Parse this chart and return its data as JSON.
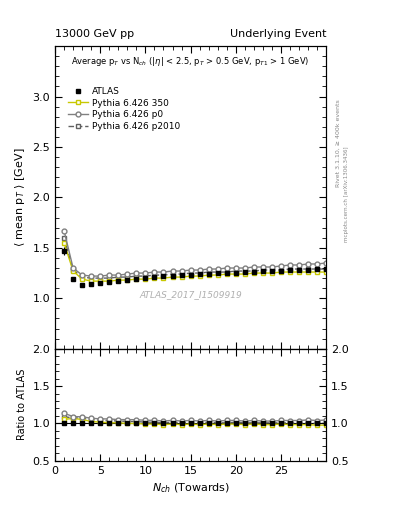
{
  "title_left": "13000 GeV pp",
  "title_right": "Underlying Event",
  "xlabel": "$N_{ch}$ (Towards)",
  "ylabel_main": "$\\langle$ mean p$_T$ $\\rangle$ [GeV]",
  "ylabel_ratio": "Ratio to ATLAS",
  "annotation": "Average p$_T$ vs N$_{ch}$ ($|\\eta|$ < 2.5, p$_T$ > 0.5 GeV, p$_{T1}$ > 1 GeV)",
  "watermark": "ATLAS_2017_I1509919",
  "right_label": "mcplots.cern.ch [arXiv:1306.3436]",
  "rivet_label": "Rivet 3.1.10, ≥ 400k events",
  "nch_values": [
    1,
    2,
    3,
    4,
    5,
    6,
    7,
    8,
    9,
    10,
    11,
    12,
    13,
    14,
    15,
    16,
    17,
    18,
    19,
    20,
    21,
    22,
    23,
    24,
    25,
    26,
    27,
    28,
    29,
    30
  ],
  "atlas_y": [
    1.47,
    1.19,
    1.13,
    1.14,
    1.15,
    1.16,
    1.17,
    1.18,
    1.19,
    1.2,
    1.21,
    1.22,
    1.22,
    1.23,
    1.23,
    1.24,
    1.24,
    1.25,
    1.25,
    1.25,
    1.26,
    1.26,
    1.27,
    1.27,
    1.27,
    1.28,
    1.28,
    1.28,
    1.29,
    1.29
  ],
  "atlas_yerr": [
    0.04,
    0.02,
    0.01,
    0.01,
    0.01,
    0.01,
    0.01,
    0.01,
    0.01,
    0.01,
    0.01,
    0.01,
    0.01,
    0.01,
    0.01,
    0.01,
    0.01,
    0.01,
    0.01,
    0.01,
    0.01,
    0.01,
    0.01,
    0.01,
    0.01,
    0.01,
    0.01,
    0.01,
    0.01,
    0.01
  ],
  "p350_y": [
    1.55,
    1.27,
    1.19,
    1.17,
    1.17,
    1.17,
    1.18,
    1.18,
    1.19,
    1.19,
    1.2,
    1.2,
    1.21,
    1.21,
    1.22,
    1.22,
    1.23,
    1.23,
    1.24,
    1.24,
    1.24,
    1.25,
    1.25,
    1.25,
    1.26,
    1.26,
    1.26,
    1.26,
    1.26,
    1.26
  ],
  "p0_y": [
    1.67,
    1.3,
    1.23,
    1.22,
    1.22,
    1.23,
    1.23,
    1.24,
    1.25,
    1.25,
    1.26,
    1.26,
    1.27,
    1.27,
    1.28,
    1.28,
    1.29,
    1.29,
    1.3,
    1.3,
    1.3,
    1.31,
    1.31,
    1.31,
    1.32,
    1.33,
    1.33,
    1.34,
    1.34,
    1.35
  ],
  "p2010_y": [
    1.6,
    1.28,
    1.21,
    1.2,
    1.2,
    1.2,
    1.21,
    1.21,
    1.22,
    1.22,
    1.23,
    1.23,
    1.24,
    1.24,
    1.25,
    1.25,
    1.26,
    1.26,
    1.26,
    1.27,
    1.27,
    1.27,
    1.28,
    1.28,
    1.28,
    1.29,
    1.29,
    1.29,
    1.29,
    1.29
  ],
  "color_atlas": "#000000",
  "color_p350": "#c8c800",
  "color_p0": "#808080",
  "color_p2010": "#606060",
  "ylim_main": [
    0.5,
    3.5
  ],
  "ylim_ratio": [
    0.5,
    2.0
  ],
  "xlim": [
    0,
    30
  ],
  "yticks_main": [
    1.0,
    1.5,
    2.0,
    2.5,
    3.0
  ],
  "yticks_ratio": [
    0.5,
    1.0,
    1.5,
    2.0
  ]
}
